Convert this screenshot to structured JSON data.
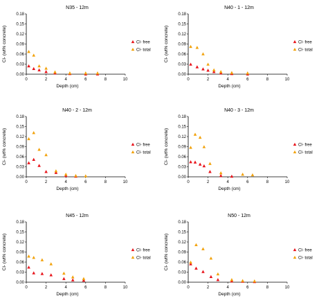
{
  "chart_data": [
    {
      "type": "scatter",
      "title": "N35 - 12m",
      "xlabel": "Depth (cm)",
      "ylabel": "Cl- (wt% concrete)",
      "xlim": [
        0,
        10
      ],
      "ylim": [
        0,
        0.18
      ],
      "xticks": [
        0,
        2,
        4,
        6,
        8,
        10
      ],
      "yticks": [
        0.0,
        0.03,
        0.06,
        0.09,
        0.12,
        0.15,
        0.18
      ],
      "legend_position": "right",
      "series": [
        {
          "name": "Cl- free",
          "marker": "triangle",
          "color": "#e8141b",
          "x": [
            0.25,
            0.75,
            1.3,
            2.0,
            2.9,
            4.4,
            6.0,
            7.2
          ],
          "y": [
            0.025,
            0.017,
            0.013,
            0.008,
            0.004,
            0.002,
            0.001,
            0.001
          ]
        },
        {
          "name": "Cl- total",
          "marker": "triangle",
          "color": "#f2a20c",
          "x": [
            0.25,
            0.75,
            1.3,
            2.0,
            2.9,
            4.4,
            6.0,
            7.2
          ],
          "y": [
            0.068,
            0.057,
            0.025,
            0.018,
            0.007,
            0.004,
            0.004,
            0.004
          ]
        }
      ]
    },
    {
      "type": "scatter",
      "title": "N40 - 1 - 12m",
      "xlabel": "Depth (cm)",
      "ylabel": "Cl- (wt% concrete)",
      "xlim": [
        0,
        10
      ],
      "ylim": [
        0,
        0.18
      ],
      "xticks": [
        0,
        2,
        4,
        6,
        8,
        10
      ],
      "yticks": [
        0.0,
        0.03,
        0.06,
        0.09,
        0.12,
        0.15,
        0.18
      ],
      "legend_position": "right",
      "series": [
        {
          "name": "Cl- free",
          "marker": "triangle",
          "color": "#e8141b",
          "x": [
            0.25,
            0.9,
            1.5,
            2.0,
            2.6,
            3.3,
            4.4,
            6.0
          ],
          "y": [
            0.03,
            0.022,
            0.016,
            0.012,
            0.008,
            0.004,
            0.002,
            0.001
          ]
        },
        {
          "name": "Cl- total",
          "marker": "triangle",
          "color": "#f2a20c",
          "x": [
            0.25,
            0.9,
            1.5,
            2.0,
            2.6,
            3.3,
            4.4,
            6.0
          ],
          "y": [
            0.083,
            0.08,
            0.061,
            0.03,
            0.013,
            0.008,
            0.005,
            0.004
          ]
        }
      ]
    },
    {
      "type": "scatter",
      "title": "N40 - 2 - 12m",
      "xlabel": "Depth (cm)",
      "ylabel": "Cl- (wt% concrete)",
      "xlim": [
        0,
        10
      ],
      "ylim": [
        0,
        0.18
      ],
      "xticks": [
        0,
        2,
        4,
        6,
        8,
        10
      ],
      "yticks": [
        0.0,
        0.03,
        0.06,
        0.09,
        0.12,
        0.15,
        0.18
      ],
      "legend_position": "right",
      "series": [
        {
          "name": "Cl- free",
          "marker": "triangle",
          "color": "#e8141b",
          "x": [
            0.25,
            0.75,
            1.3,
            2.0,
            3.0,
            4.0,
            5.0
          ],
          "y": [
            0.042,
            0.052,
            0.034,
            0.016,
            0.013,
            0.004,
            0.002
          ]
        },
        {
          "name": "Cl- total",
          "marker": "triangle",
          "color": "#f2a20c",
          "x": [
            0.25,
            0.75,
            1.3,
            2.0,
            3.0,
            4.0,
            5.0,
            6.0
          ],
          "y": [
            0.114,
            0.132,
            0.082,
            0.066,
            0.018,
            0.008,
            0.004,
            0.003
          ]
        }
      ]
    },
    {
      "type": "scatter",
      "title": "N40 - 3 - 12m",
      "xlabel": "Depth (cm)",
      "ylabel": "Cl- (wt% concrete)",
      "xlim": [
        0,
        10
      ],
      "ylim": [
        0,
        0.18
      ],
      "xticks": [
        0,
        2,
        4,
        6,
        8,
        10
      ],
      "yticks": [
        0.0,
        0.03,
        0.06,
        0.09,
        0.12,
        0.15,
        0.18
      ],
      "legend_position": "right",
      "series": [
        {
          "name": "Cl- free",
          "marker": "triangle",
          "color": "#e8141b",
          "x": [
            0.25,
            0.7,
            1.2,
            1.6,
            2.2,
            3.3,
            4.4
          ],
          "y": [
            0.045,
            0.044,
            0.038,
            0.033,
            0.016,
            0.004,
            0.002
          ]
        },
        {
          "name": "Cl- total",
          "marker": "triangle",
          "color": "#f2a20c",
          "x": [
            0.25,
            0.7,
            1.2,
            1.6,
            2.2,
            3.3,
            5.5,
            6.5
          ],
          "y": [
            0.088,
            0.127,
            0.118,
            0.09,
            0.04,
            0.012,
            0.008,
            0.006
          ]
        }
      ]
    },
    {
      "type": "scatter",
      "title": "N45 - 12m",
      "xlabel": "Depth (cm)",
      "ylabel": "Cl- (wt% concrete)",
      "xlim": [
        0,
        10
      ],
      "ylim": [
        0,
        0.18
      ],
      "xticks": [
        0,
        2,
        4,
        6,
        8,
        10
      ],
      "yticks": [
        0.0,
        0.03,
        0.06,
        0.09,
        0.12,
        0.15,
        0.18
      ],
      "legend_position": "right",
      "series": [
        {
          "name": "Cl- free",
          "marker": "triangle",
          "color": "#e8141b",
          "x": [
            0.25,
            0.75,
            1.6,
            2.5,
            3.8,
            4.7,
            5.8
          ],
          "y": [
            0.045,
            0.028,
            0.026,
            0.022,
            0.011,
            0.007,
            0.006
          ]
        },
        {
          "name": "Cl- total",
          "marker": "triangle",
          "color": "#f2a20c",
          "x": [
            0.25,
            0.75,
            1.6,
            2.5,
            3.8,
            4.7,
            5.8
          ],
          "y": [
            0.078,
            0.074,
            0.067,
            0.055,
            0.027,
            0.016,
            0.011
          ]
        }
      ]
    },
    {
      "type": "scatter",
      "title": "N50 - 12m",
      "xlabel": "Depth (cm)",
      "ylabel": "Cl- (wt% concrete)",
      "xlim": [
        0,
        10
      ],
      "ylim": [
        0,
        0.18
      ],
      "xticks": [
        0,
        2,
        4,
        6,
        8,
        10
      ],
      "yticks": [
        0.0,
        0.03,
        0.06,
        0.09,
        0.12,
        0.15,
        0.18
      ],
      "legend_position": "right",
      "series": [
        {
          "name": "Cl- free",
          "marker": "triangle",
          "color": "#e8141b",
          "x": [
            0.25,
            0.8,
            1.5,
            2.3,
            3.0,
            4.4,
            5.5,
            6.7
          ],
          "y": [
            0.055,
            0.042,
            0.032,
            0.017,
            0.008,
            0.004,
            0.003,
            0.002
          ]
        },
        {
          "name": "Cl- total",
          "marker": "triangle",
          "color": "#f2a20c",
          "x": [
            0.25,
            0.8,
            1.5,
            2.3,
            3.0,
            4.4,
            5.5,
            6.7
          ],
          "y": [
            0.06,
            0.112,
            0.1,
            0.072,
            0.025,
            0.008,
            0.005,
            0.004
          ]
        }
      ]
    }
  ]
}
